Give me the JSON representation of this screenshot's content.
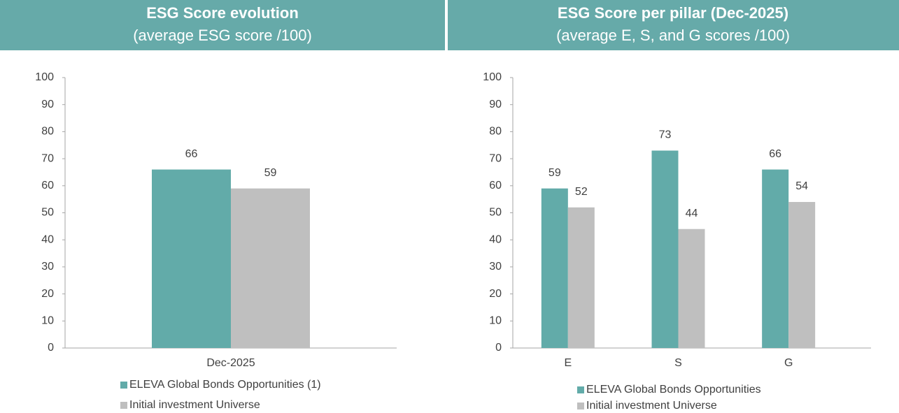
{
  "chart_data": [
    {
      "type": "bar",
      "title": "ESG Score evolution",
      "subtitle": "(average ESG score /100)",
      "categories": [
        "Dec-2025"
      ],
      "series": [
        {
          "name": "ELEVA Global Bonds Opportunities (1)",
          "color": "#62aba9",
          "values": [
            66
          ]
        },
        {
          "name": "Initial investment Universe",
          "color": "#bfbfbf",
          "values": [
            59
          ]
        }
      ],
      "ylim": [
        0,
        100
      ],
      "yticks": [
        0,
        10,
        20,
        30,
        40,
        50,
        60,
        70,
        80,
        90,
        100
      ],
      "legend": "bottom"
    },
    {
      "type": "bar",
      "title": "ESG Score per pillar (Dec-2025)",
      "subtitle": "(average E, S, and G scores /100)",
      "categories": [
        "E",
        "S",
        "G"
      ],
      "series": [
        {
          "name": "ELEVA Global Bonds Opportunities",
          "color": "#62aba9",
          "values": [
            59,
            73,
            66
          ]
        },
        {
          "name": "Initial investment Universe",
          "color": "#bfbfbf",
          "values": [
            52,
            44,
            54
          ]
        }
      ],
      "ylim": [
        0,
        100
      ],
      "yticks": [
        0,
        10,
        20,
        30,
        40,
        50,
        60,
        70,
        80,
        90,
        100
      ],
      "legend": "bottom"
    }
  ]
}
